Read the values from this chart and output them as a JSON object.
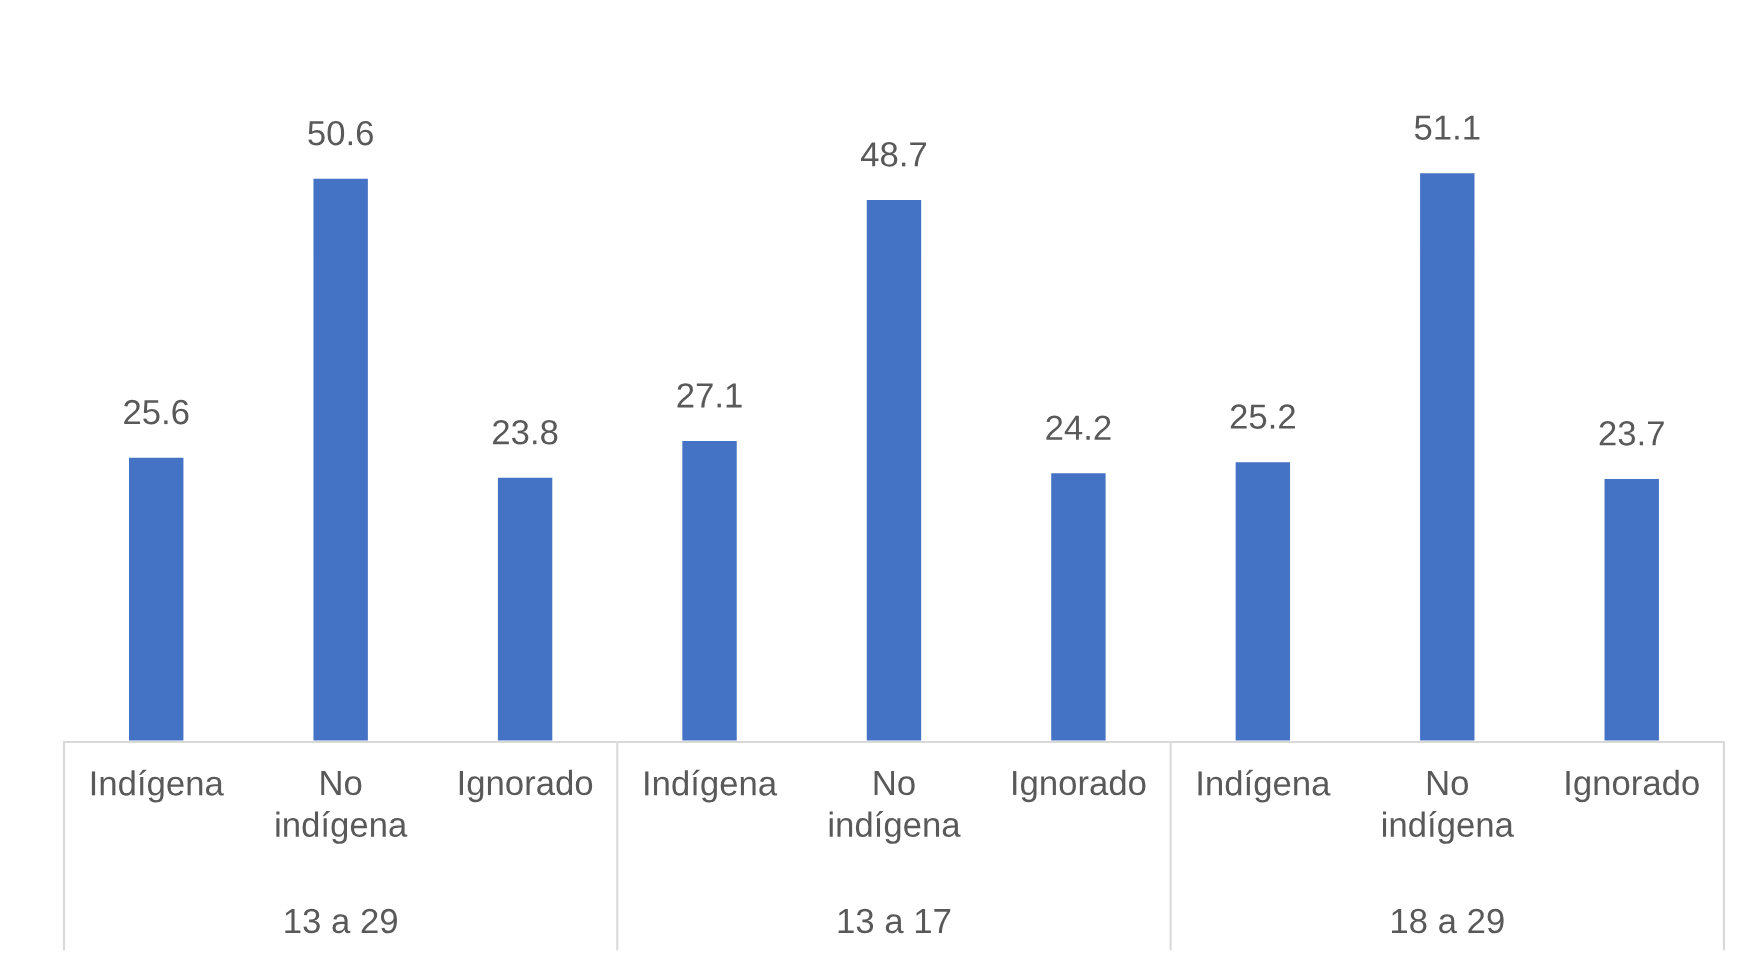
{
  "chart_data": {
    "type": "bar",
    "categories": [
      "Indígena",
      "No indígena",
      "Ignorado",
      "Indígena",
      "No indígena",
      "Ignorado",
      "Indígena",
      "No indígena",
      "Ignorado"
    ],
    "values": [
      25.6,
      50.6,
      23.8,
      27.1,
      48.7,
      24.2,
      25.2,
      51.1,
      23.7
    ],
    "color": "#4472c4",
    "data_labels": true,
    "tick_labels": "x",
    "annotations": [
      "13 a 29",
      "13 a 17",
      "18 a 29"
    ]
  }
}
